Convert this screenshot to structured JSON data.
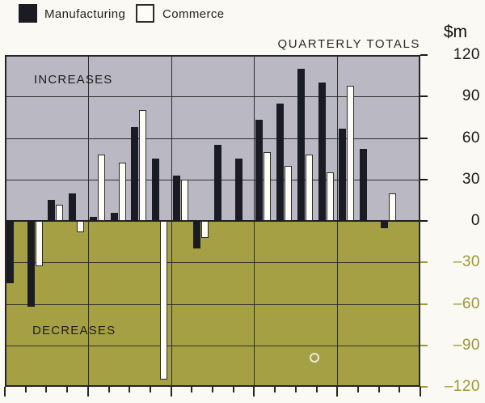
{
  "legend": {
    "manufacturing_label": "Manufacturing",
    "commerce_label": "Commerce"
  },
  "header": {
    "title": "QUARTERLY TOTALS",
    "unit_label": "$m"
  },
  "regions": {
    "increases_label": "INCREASES",
    "decreases_label": "DECREASES"
  },
  "axis": {
    "max": 120,
    "min": -120,
    "tick_values": [
      120,
      90,
      60,
      30,
      0,
      -30,
      -60,
      -90,
      -120
    ],
    "tick_labels": [
      "120",
      "90",
      "60",
      "30",
      "0",
      "–30",
      "–60",
      "–90",
      "–120"
    ],
    "grid_values": [
      90,
      60,
      30,
      -30,
      -60,
      -90
    ],
    "year_divisions": 5,
    "quarters_per_year": 4
  },
  "colors": {
    "manufacturing_bar": "#1b1b24",
    "commerce_bar": "#fdfdf6",
    "increases_bg": "#b9b8c3",
    "decreases_bg": "#a5a044",
    "grid_line": "#2e2e2e",
    "positive_label": "#1a1a1a",
    "negative_label": "#9d9835"
  },
  "chart_data": {
    "type": "bar",
    "title": "QUARTERLY TOTALS",
    "ylabel": "$m",
    "ylim": [
      -120,
      120
    ],
    "legend_position": "top",
    "grid": true,
    "series_names": [
      "Manufacturing",
      "Commerce"
    ],
    "quarters": [
      {
        "manufacturing": -45,
        "commerce": null
      },
      {
        "manufacturing": -62,
        "commerce": -33
      },
      {
        "manufacturing": 15,
        "commerce": 12
      },
      {
        "manufacturing": 20,
        "commerce": -8
      },
      {
        "manufacturing": 3,
        "commerce": 48
      },
      {
        "manufacturing": 6,
        "commerce": 42
      },
      {
        "manufacturing": 68,
        "commerce": 80
      },
      {
        "manufacturing": 45,
        "commerce": -115
      },
      {
        "manufacturing": 33,
        "commerce": 30
      },
      {
        "manufacturing": -20,
        "commerce": -12
      },
      {
        "manufacturing": 55,
        "commerce": null
      },
      {
        "manufacturing": 45,
        "commerce": null
      },
      {
        "manufacturing": 73,
        "commerce": 50
      },
      {
        "manufacturing": 85,
        "commerce": 40
      },
      {
        "manufacturing": 110,
        "commerce": 48
      },
      {
        "manufacturing": 100,
        "commerce": 35
      },
      {
        "manufacturing": 67,
        "commerce": 98
      },
      {
        "manufacturing": 52,
        "commerce": null
      },
      {
        "manufacturing": -5,
        "commerce": 20
      },
      {
        "manufacturing": null,
        "commerce": null
      }
    ]
  }
}
